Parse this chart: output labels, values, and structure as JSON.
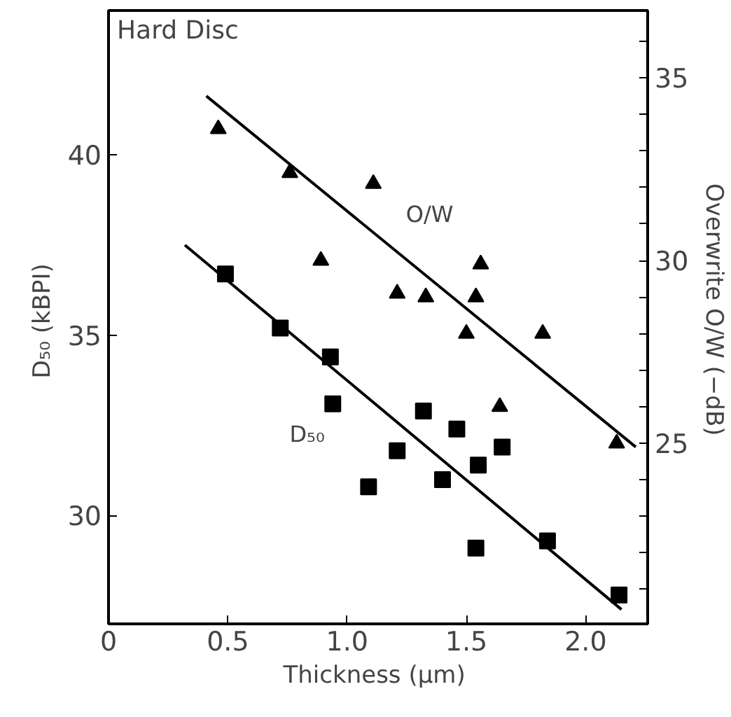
{
  "chart_data": {
    "type": "scatter",
    "title": "Hard Disc",
    "xlabel": "Thickness  (μm)",
    "ylabel": "D₅₀  (kBPI)",
    "y2label": "Overwrite  O/W  (−dB)",
    "series": [
      {
        "marker": "square",
        "color": "#000000",
        "x": [
          0.49,
          0.72,
          0.93,
          0.94,
          1.09,
          1.21,
          1.32,
          1.4,
          1.46,
          1.54,
          1.55,
          1.65,
          1.84,
          2.14
        ],
        "values": [
          36.7,
          35.2,
          34.4,
          33.1,
          30.8,
          31.8,
          32.9,
          31.0,
          32.4,
          29.1,
          31.4,
          31.9,
          29.3,
          27.8
        ]
      },
      {
        "marker": "triangle",
        "axis": "y2",
        "color": "#000000",
        "x": [
          0.46,
          0.76,
          1.11,
          0.89,
          1.21,
          1.33,
          1.56,
          1.54,
          1.5,
          1.64,
          1.82,
          2.13
        ],
        "values": [
          33.6,
          32.4,
          32.1,
          30.0,
          29.1,
          29.0,
          29.9,
          29.0,
          28.0,
          26.0,
          28.0,
          25.0
        ]
      },
      {
        "type": "line",
        "name": "D₅₀",
        "color": "#000000",
        "x": [
          0.32,
          2.15
        ],
        "values": [
          37.5,
          27.4
        ]
      },
      {
        "type": "line",
        "name": "O/W",
        "axis": "y2",
        "color": "#000000",
        "x": [
          0.41,
          2.21
        ],
        "values": [
          34.5,
          24.9
        ]
      }
    ],
    "xlim": [
      0,
      2.26
    ],
    "xticks": [
      0,
      0.5,
      {
        "value": 1,
        "label": "1.0"
      },
      1.5,
      {
        "value": 2,
        "label": "2.0"
      }
    ],
    "ylim": [
      27,
      44
    ],
    "yticks": [
      30,
      35,
      40
    ],
    "y2lim": [
      20.06,
      36.84
    ],
    "y2ticks": [
      {
        "value": 21,
        "label": null
      },
      {
        "value": 22,
        "label": null
      },
      {
        "value": 23,
        "label": null
      },
      {
        "value": 24,
        "label": null
      },
      25,
      {
        "value": 26,
        "label": null
      },
      {
        "value": 27,
        "label": null
      },
      {
        "value": 28,
        "label": null
      },
      {
        "value": 29,
        "label": null
      },
      30,
      {
        "value": 31,
        "label": null
      },
      {
        "value": 32,
        "label": null
      },
      {
        "value": 33,
        "label": null
      },
      {
        "value": 34,
        "label": null
      },
      35,
      {
        "value": 36,
        "label": null
      }
    ],
    "grid": false
  }
}
